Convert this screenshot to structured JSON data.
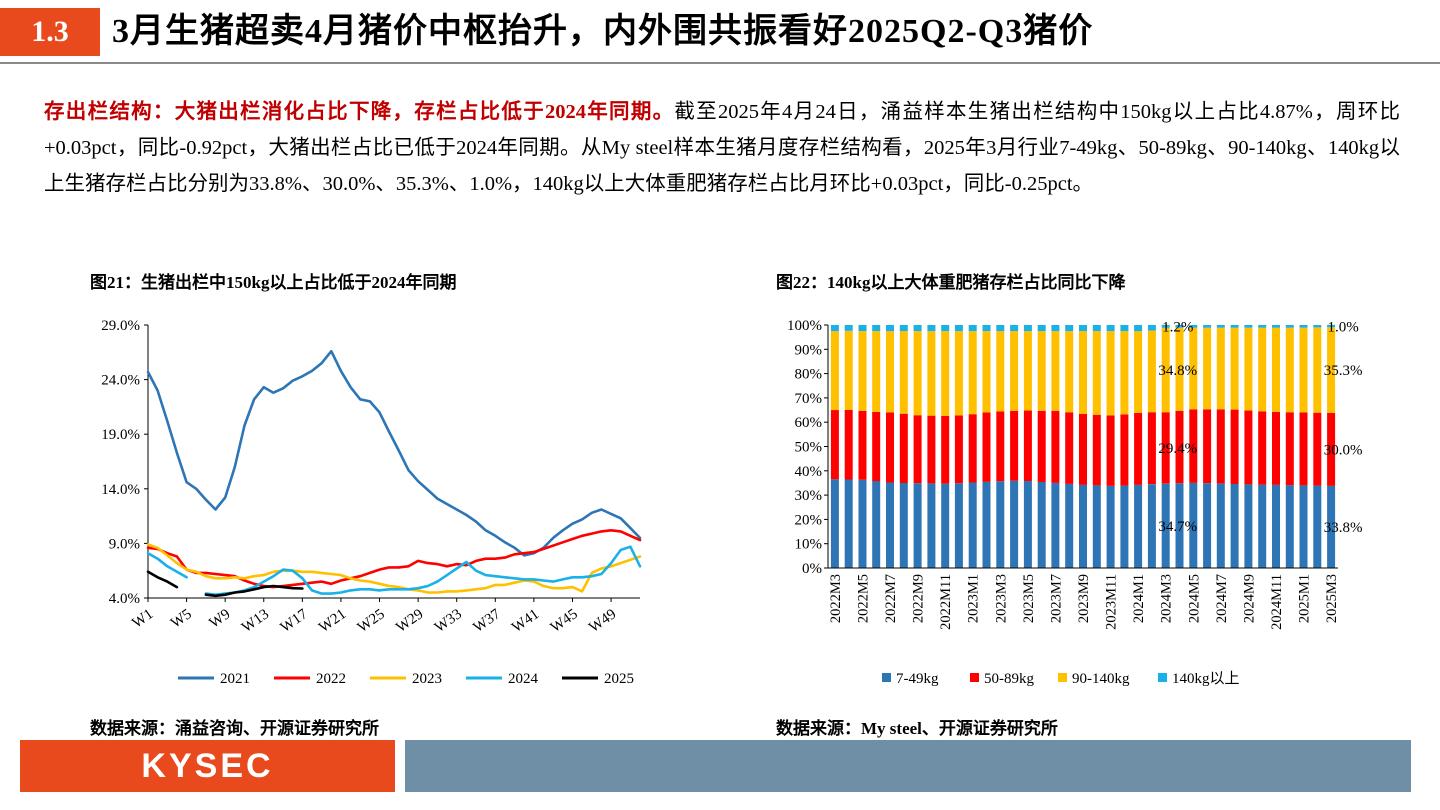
{
  "header": {
    "section_number": "1.3",
    "title": "3月生猪超卖4月猪价中枢抬升，内外围共振看好2025Q2-Q3猪价"
  },
  "paragraph": {
    "lead": "存出栏结构：大猪出栏消化占比下降，存栏占比低于2024年同期。",
    "body": "截至2025年4月24日，涌益样本生猪出栏结构中150kg以上占比4.87%，周环比+0.03pct，同比-0.92pct，大猪出栏占比已低于2024年同期。从My steel样本生猪月度存栏结构看，2025年3月行业7-49kg、50-89kg、90-140kg、140kg以上生猪存栏占比分别为33.8%、30.0%、35.3%、1.0%，140kg以上大体重肥猪存栏占比月环比+0.03pct，同比-0.25pct。"
  },
  "figure21": {
    "title": "图21：生猪出栏中150kg以上占比低于2024年同期",
    "source": "数据来源：涌益咨询、开源证券研究所"
  },
  "figure22": {
    "title": "图22：140kg以上大体重肥猪存栏占比同比下降",
    "source": "数据来源：My steel、开源证券研究所"
  },
  "footer": {
    "logo": "KYSEC"
  },
  "chart_data": [
    {
      "type": "line",
      "title": "图21：生猪出栏中150kg以上占比低于2024年同期",
      "ylim": [
        4.0,
        29.0
      ],
      "yticks": [
        4.0,
        9.0,
        14.0,
        19.0,
        24.0,
        29.0
      ],
      "ytick_labels": [
        "4.0%",
        "9.0%",
        "14.0%",
        "19.0%",
        "24.0%",
        "29.0%"
      ],
      "xlim": [
        1,
        52
      ],
      "xticks": [
        1,
        5,
        9,
        13,
        17,
        21,
        25,
        29,
        33,
        37,
        41,
        45,
        49
      ],
      "xtick_labels": [
        "W1",
        "W5",
        "W9",
        "W13",
        "W17",
        "W21",
        "W25",
        "W29",
        "W33",
        "W37",
        "W41",
        "W45",
        "W49"
      ],
      "legend": "bottom",
      "series": [
        {
          "name": "2021",
          "color": "#2e75b6",
          "start": 1,
          "values": [
            24.7,
            23.0,
            20.2,
            17.3,
            14.6,
            14.0,
            13.0,
            12.1,
            13.2,
            16.0,
            19.8,
            22.2,
            23.3,
            22.8,
            23.2,
            23.9,
            24.3,
            24.8,
            25.5,
            26.6,
            24.8,
            23.3,
            22.2,
            22.0,
            21.0,
            19.2,
            17.5,
            15.7,
            14.7,
            13.9,
            13.1,
            12.6,
            12.1,
            11.6,
            11.0,
            10.2,
            9.7,
            9.1,
            8.6,
            7.9,
            8.1,
            8.6,
            9.5,
            10.2,
            10.8,
            11.2,
            11.8,
            12.1,
            11.7,
            11.3,
            10.4,
            9.5
          ]
        },
        {
          "name": "2022",
          "color": "#ff0000",
          "start": 1,
          "values": [
            8.6,
            8.5,
            8.1,
            7.8,
            6.6,
            6.3,
            6.3,
            6.2,
            6.1,
            6.0,
            5.6,
            5.3,
            5.1,
            5.0,
            5.1,
            5.2,
            5.3,
            5.4,
            5.5,
            5.3,
            5.6,
            5.8,
            6.0,
            6.3,
            6.6,
            6.8,
            6.8,
            6.9,
            7.4,
            7.2,
            7.1,
            6.9,
            7.1,
            7.0,
            7.4,
            7.6,
            7.6,
            7.7,
            8.0,
            8.1,
            8.2,
            8.5,
            8.8,
            9.1,
            9.4,
            9.7,
            9.9,
            10.1,
            10.2,
            10.1,
            9.7,
            9.3
          ]
        },
        {
          "name": "2023",
          "color": "#ffc000",
          "start": 1,
          "values": [
            8.9,
            8.6,
            7.9,
            7.2,
            6.6,
            6.4,
            6.0,
            5.8,
            5.8,
            5.9,
            5.8,
            6.0,
            6.1,
            6.4,
            6.5,
            6.5,
            6.4,
            6.4,
            6.3,
            6.2,
            6.1,
            5.8,
            5.6,
            5.5,
            5.3,
            5.1,
            5.0,
            4.8,
            4.7,
            4.5,
            4.5,
            4.6,
            4.6,
            4.7,
            4.8,
            4.9,
            5.2,
            5.2,
            5.4,
            5.6,
            5.5,
            5.1,
            4.9,
            4.9,
            5.0,
            4.6,
            6.3,
            6.7,
            6.9,
            7.2,
            7.5,
            7.8
          ]
        },
        {
          "name": "2024",
          "color": "#1ab0e8",
          "start": 1,
          "values": [
            8.1,
            7.6,
            6.9,
            6.4,
            5.9,
            null,
            4.4,
            4.3,
            4.4,
            4.5,
            4.7,
            5.0,
            5.5,
            6.0,
            6.6,
            6.5,
            5.8,
            4.7,
            4.4,
            4.4,
            4.5,
            4.7,
            4.8,
            4.8,
            4.7,
            4.8,
            4.8,
            4.8,
            4.9,
            5.1,
            5.5,
            6.1,
            6.7,
            7.3,
            6.5,
            6.1,
            6.0,
            5.9,
            5.8,
            5.7,
            5.7,
            5.6,
            5.5,
            5.7,
            5.9,
            5.9,
            6.0,
            6.2,
            7.2,
            8.4,
            8.7,
            6.9
          ]
        },
        {
          "name": "2025",
          "color": "#000000",
          "start": 1,
          "values": [
            6.4,
            5.9,
            5.5,
            5.0,
            null,
            null,
            4.3,
            4.2,
            4.3,
            4.5,
            4.6,
            4.8,
            5.0,
            5.1,
            5.0,
            4.9,
            4.87
          ]
        }
      ]
    },
    {
      "type": "stacked-bar",
      "title": "图22：140kg以上大体重肥猪存栏占比同比下降",
      "ylim": [
        0,
        100
      ],
      "yticks": [
        0,
        10,
        20,
        30,
        40,
        50,
        60,
        70,
        80,
        90,
        100
      ],
      "ytick_labels": [
        "0%",
        "10%",
        "20%",
        "30%",
        "40%",
        "50%",
        "60%",
        "70%",
        "80%",
        "90%",
        "100%"
      ],
      "categories": [
        "2022M3",
        "2022M4",
        "2022M5",
        "2022M6",
        "2022M7",
        "2022M8",
        "2022M9",
        "2022M10",
        "2022M11",
        "2022M12",
        "2023M1",
        "2023M2",
        "2023M3",
        "2023M4",
        "2023M5",
        "2023M6",
        "2023M7",
        "2023M8",
        "2023M9",
        "2023M10",
        "2023M11",
        "2023M12",
        "2024M1",
        "2024M2",
        "2024M3",
        "2024M4",
        "2024M5",
        "2024M6",
        "2024M7",
        "2024M8",
        "2024M9",
        "2024M10",
        "2024M11",
        "2024M12",
        "2025M1",
        "2025M2",
        "2025M3"
      ],
      "shown_tick_labels": [
        "2022M3",
        "2022M5",
        "2022M7",
        "2022M9",
        "2022M11",
        "2023M1",
        "2023M3",
        "2023M5",
        "2023M7",
        "2023M9",
        "2023M11",
        "2024M1",
        "2024M3",
        "2024M5",
        "2024M7",
        "2024M9",
        "2024M11",
        "2025M1",
        "2025M3"
      ],
      "legend": "bottom",
      "series": [
        {
          "name": "7-49kg",
          "color": "#2e75b6",
          "values": [
            36.5,
            36.4,
            36.3,
            35.8,
            35.2,
            35.0,
            34.9,
            34.8,
            34.7,
            34.9,
            35.2,
            35.5,
            35.7,
            35.9,
            35.8,
            35.4,
            35.0,
            34.6,
            34.2,
            34.0,
            33.8,
            33.9,
            34.2,
            34.5,
            34.7,
            34.9,
            35.0,
            34.9,
            34.8,
            34.6,
            34.4,
            34.3,
            34.2,
            34.1,
            34.0,
            33.9,
            33.8
          ]
        },
        {
          "name": "50-89kg",
          "color": "#ff0000",
          "values": [
            28.5,
            28.6,
            28.3,
            28.5,
            28.8,
            28.5,
            28.0,
            27.9,
            27.9,
            27.9,
            28.1,
            28.5,
            28.7,
            28.8,
            29.0,
            29.3,
            29.6,
            29.5,
            29.2,
            29.1,
            29.0,
            29.3,
            29.6,
            29.6,
            29.4,
            29.8,
            30.3,
            30.4,
            30.5,
            30.6,
            30.4,
            30.2,
            30.1,
            30.0,
            30.0,
            30.0,
            30.0
          ]
        },
        {
          "name": "90-140kg",
          "color": "#ffc000",
          "values": [
            32.5,
            32.6,
            32.9,
            33.2,
            33.5,
            34.0,
            34.6,
            34.8,
            34.9,
            34.7,
            34.2,
            33.5,
            33.1,
            32.8,
            32.7,
            32.8,
            32.9,
            33.4,
            34.1,
            34.4,
            34.7,
            34.3,
            33.7,
            33.6,
            34.8,
            34.2,
            33.6,
            33.6,
            33.6,
            33.7,
            34.1,
            34.4,
            34.6,
            34.8,
            34.9,
            35.1,
            35.3
          ]
        },
        {
          "name": "140kg以上",
          "color": "#1ab0e8",
          "values": [
            2.5,
            2.4,
            2.5,
            2.5,
            2.5,
            2.5,
            2.5,
            2.5,
            2.5,
            2.5,
            2.5,
            2.5,
            2.5,
            2.5,
            2.5,
            2.5,
            2.5,
            2.5,
            2.5,
            2.5,
            2.5,
            2.5,
            2.5,
            2.3,
            1.2,
            1.1,
            1.1,
            1.1,
            1.1,
            1.1,
            1.1,
            1.1,
            1.1,
            1.1,
            1.1,
            1.0,
            1.0
          ]
        }
      ],
      "annotations": [
        {
          "category": "2024M3",
          "series": "140kg以上",
          "text": "1.2%"
        },
        {
          "category": "2024M3",
          "series": "90-140kg",
          "text": "34.8%"
        },
        {
          "category": "2024M3",
          "series": "50-89kg",
          "text": "29.4%"
        },
        {
          "category": "2024M3",
          "series": "7-49kg",
          "text": "34.7%"
        },
        {
          "category": "2025M3",
          "series": "140kg以上",
          "text": "1.0%"
        },
        {
          "category": "2025M3",
          "series": "90-140kg",
          "text": "35.3%"
        },
        {
          "category": "2025M3",
          "series": "50-89kg",
          "text": "30.0%"
        },
        {
          "category": "2025M3",
          "series": "7-49kg",
          "text": "33.8%"
        }
      ]
    }
  ]
}
